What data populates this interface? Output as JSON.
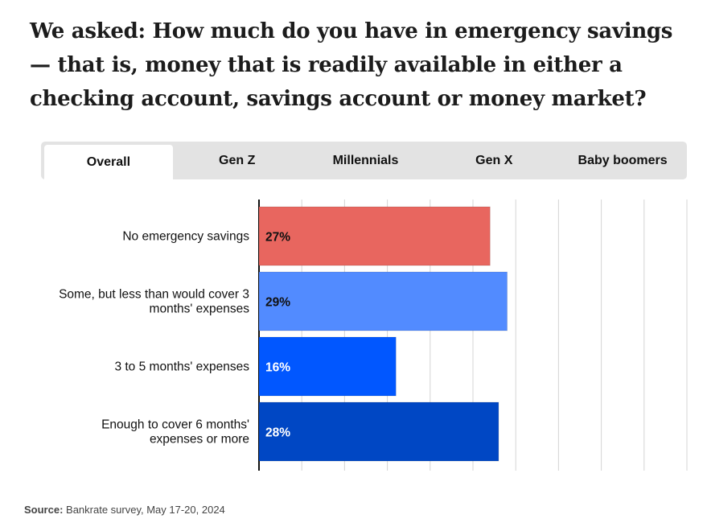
{
  "title": "We asked: How much do you have in emergency savings — that is, money that is readily available in either a checking account, savings account or money market?",
  "tabs": [
    {
      "label": "Overall",
      "active": true
    },
    {
      "label": "Gen Z",
      "active": false
    },
    {
      "label": "Millennials",
      "active": false
    },
    {
      "label": "Gen X",
      "active": false
    },
    {
      "label": "Baby boomers",
      "active": false
    }
  ],
  "chart_data": {
    "type": "bar",
    "orientation": "horizontal",
    "categories": [
      [
        "No emergency savings"
      ],
      [
        "Some, but less than would cover 3",
        "months' expenses"
      ],
      [
        "3 to 5 months' expenses"
      ],
      [
        "Enough to cover 6 months'",
        "expenses or more"
      ]
    ],
    "values": [
      27,
      29,
      16,
      28
    ],
    "value_labels": [
      "27%",
      "29%",
      "16%",
      "28%"
    ],
    "colors": [
      "#e8665f",
      "#528bff",
      "#0157ff",
      "#0047c4"
    ],
    "label_colors": [
      "#111111",
      "#111111",
      "#ffffff",
      "#ffffff"
    ],
    "xlim": [
      0,
      50
    ],
    "grid": true
  },
  "source": {
    "label": "Source:",
    "text": "Bankrate survey, May 17-20, 2024"
  }
}
